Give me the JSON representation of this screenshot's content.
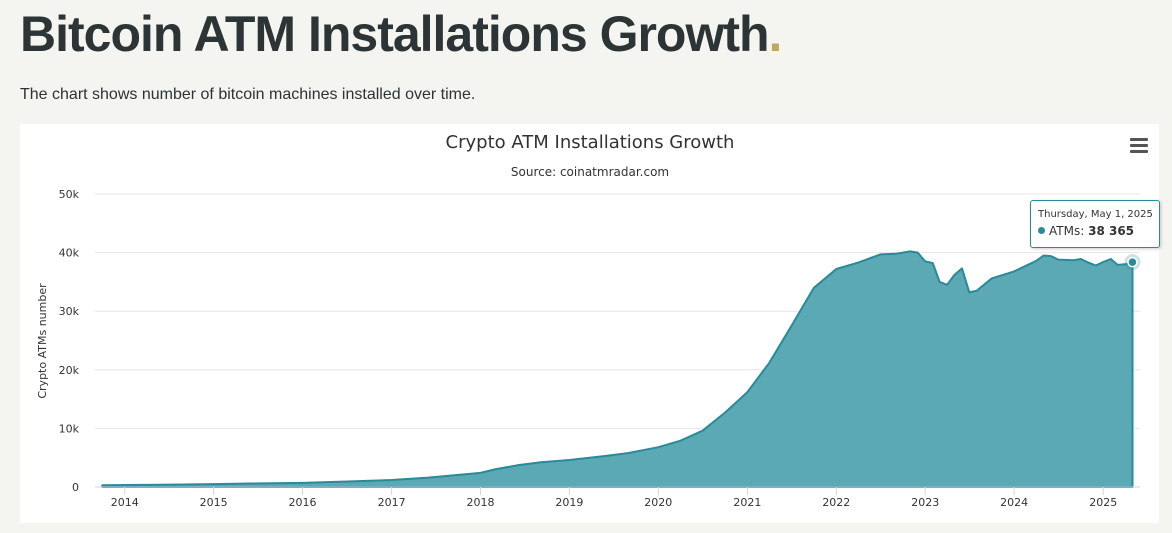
{
  "page": {
    "title": "Bitcoin ATM Installations Growth",
    "title_dot": ".",
    "description": "The chart shows number of bitcoin machines installed over time."
  },
  "colors": {
    "area_fill": "#5aa9b5",
    "area_line": "#2a8a99",
    "title_dot": "#c0a860",
    "heading": "#2c3436"
  },
  "toolbar": {
    "menu_icon": "hamburger-menu-icon"
  },
  "tooltip": {
    "date": "Thursday, May 1, 2025",
    "series_label": "ATMs:",
    "value": "38 365"
  },
  "chart_data": {
    "type": "area",
    "title": "Crypto ATM Installations Growth",
    "subtitle": "Source: coinatmradar.com",
    "xlabel": "",
    "ylabel": "Crypto ATMs number",
    "x_ticks": [
      "2014",
      "2015",
      "2016",
      "2017",
      "2018",
      "2019",
      "2020",
      "2021",
      "2022",
      "2023",
      "2024",
      "2025"
    ],
    "y_ticks": [
      "0",
      "10k",
      "20k",
      "30k",
      "40k",
      "50k"
    ],
    "ylim": [
      0,
      50000
    ],
    "xlim": [
      "2013-09-01",
      "2025-06-01"
    ],
    "grid": true,
    "legend": false,
    "series": [
      {
        "x": [
          "2013-10-01",
          "2014-06-01",
          "2015-01-01",
          "2015-06-01",
          "2016-01-01",
          "2016-06-01",
          "2017-01-01",
          "2017-06-01",
          "2018-01-01",
          "2018-03-01",
          "2018-06-01",
          "2018-09-01",
          "2019-01-01",
          "2019-06-01",
          "2019-09-01",
          "2020-01-01",
          "2020-04-01",
          "2020-07-01",
          "2020-10-01",
          "2021-01-01",
          "2021-04-01",
          "2021-07-01",
          "2021-10-01",
          "2022-01-01",
          "2022-04-01",
          "2022-07-01",
          "2022-09-01",
          "2022-11-01",
          "2022-12-01",
          "2023-01-01",
          "2023-02-01",
          "2023-03-01",
          "2023-04-01",
          "2023-05-01",
          "2023-06-01",
          "2023-07-01",
          "2023-08-01",
          "2023-10-01",
          "2024-01-01",
          "2024-04-01",
          "2024-05-01",
          "2024-06-01",
          "2024-07-01",
          "2024-09-01",
          "2024-10-01",
          "2024-11-01",
          "2024-12-01",
          "2025-01-01",
          "2025-02-01",
          "2025-03-01",
          "2025-04-01",
          "2025-05-01"
        ],
        "y": [
          300,
          400,
          500,
          600,
          700,
          900,
          1200,
          1600,
          2400,
          3000,
          3700,
          4200,
          4600,
          5300,
          5800,
          6800,
          7900,
          9600,
          12700,
          16200,
          21200,
          27500,
          34000,
          37200,
          38300,
          39700,
          39800,
          40200,
          40000,
          38500,
          38200,
          35000,
          34500,
          36200,
          37300,
          33200,
          33500,
          35600,
          36800,
          38600,
          39500,
          39400,
          38800,
          38700,
          38900,
          38300,
          37800,
          38400,
          38900,
          37900,
          38000,
          38365
        ]
      }
    ]
  }
}
